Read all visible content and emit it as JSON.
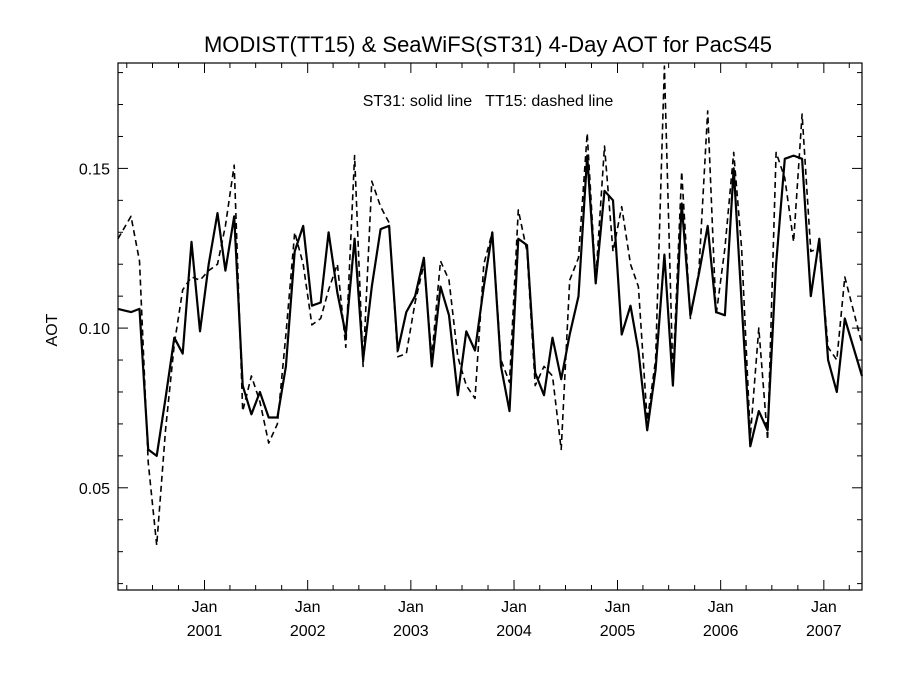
{
  "chart_data": {
    "type": "line",
    "title": "MODIST(TT15) & SeaWiFS(ST31) 4-Day AOT for PacS45",
    "annotation": "ST31: solid line   TT15: dashed line",
    "xlabel": "",
    "ylabel": "AOT",
    "xlim": [
      "2000-03-01",
      "2007-05-16"
    ],
    "ylim": [
      0.018,
      0.183
    ],
    "grid": false,
    "legend": "none",
    "yticks": [
      {
        "value": 0.05,
        "label": "0.05"
      },
      {
        "value": 0.1,
        "label": "0.10"
      },
      {
        "value": 0.15,
        "label": "0.15"
      }
    ],
    "xticks": [
      {
        "date": "2001-01-01",
        "month": "Jan",
        "year": "2001"
      },
      {
        "date": "2002-01-01",
        "month": "Jan",
        "year": "2002"
      },
      {
        "date": "2003-01-01",
        "month": "Jan",
        "year": "2003"
      },
      {
        "date": "2004-01-01",
        "month": "Jan",
        "year": "2004"
      },
      {
        "date": "2005-01-01",
        "month": "Jan",
        "year": "2005"
      },
      {
        "date": "2006-01-01",
        "month": "Jan",
        "year": "2006"
      },
      {
        "date": "2007-01-01",
        "month": "Jan",
        "year": "2007"
      }
    ],
    "series": [
      {
        "name": "ST31",
        "style": "solid",
        "color": "#000000",
        "points": [
          [
            "2000-03-01",
            0.106
          ],
          [
            "2000-04-16",
            0.105
          ],
          [
            "2000-05-16",
            0.106
          ],
          [
            "2000-06-16",
            0.062
          ],
          [
            "2000-07-16",
            0.06
          ],
          [
            "2000-08-16",
            0.078
          ],
          [
            "2000-09-16",
            0.097
          ],
          [
            "2000-10-16",
            0.092
          ],
          [
            "2000-11-16",
            0.127
          ],
          [
            "2000-12-16",
            0.099
          ],
          [
            "2001-01-16",
            0.12
          ],
          [
            "2001-02-16",
            0.136
          ],
          [
            "2001-03-16",
            0.118
          ],
          [
            "2001-04-16",
            0.135
          ],
          [
            "2001-05-16",
            0.082
          ],
          [
            "2001-06-16",
            0.073
          ],
          [
            "2001-07-16",
            0.08
          ],
          [
            "2001-08-16",
            0.072
          ],
          [
            "2001-09-16",
            0.072
          ],
          [
            "2001-10-16",
            0.088
          ],
          [
            "2001-11-16",
            0.124
          ],
          [
            "2001-12-16",
            0.132
          ],
          [
            "2002-01-16",
            0.107
          ],
          [
            "2002-02-16",
            0.108
          ],
          [
            "2002-03-16",
            0.13
          ],
          [
            "2002-04-16",
            0.111
          ],
          [
            "2002-05-16",
            0.098
          ],
          [
            "2002-06-16",
            0.128
          ],
          [
            "2002-07-16",
            0.09
          ],
          [
            "2002-08-16",
            0.113
          ],
          [
            "2002-09-16",
            0.131
          ],
          [
            "2002-10-16",
            0.132
          ],
          [
            "2002-11-16",
            0.093
          ],
          [
            "2002-12-16",
            0.105
          ],
          [
            "2003-01-16",
            0.11
          ],
          [
            "2003-02-16",
            0.122
          ],
          [
            "2003-03-16",
            0.088
          ],
          [
            "2003-04-16",
            0.113
          ],
          [
            "2003-05-16",
            0.104
          ],
          [
            "2003-06-16",
            0.079
          ],
          [
            "2003-07-16",
            0.099
          ],
          [
            "2003-08-16",
            0.093
          ],
          [
            "2003-09-16",
            0.113
          ],
          [
            "2003-10-16",
            0.13
          ],
          [
            "2003-11-16",
            0.088
          ],
          [
            "2003-12-16",
            0.074
          ],
          [
            "2004-01-16",
            0.128
          ],
          [
            "2004-02-16",
            0.126
          ],
          [
            "2004-03-16",
            0.086
          ],
          [
            "2004-04-16",
            0.079
          ],
          [
            "2004-05-16",
            0.097
          ],
          [
            "2004-06-16",
            0.084
          ],
          [
            "2004-07-16",
            0.098
          ],
          [
            "2004-08-16",
            0.11
          ],
          [
            "2004-09-16",
            0.154
          ],
          [
            "2004-10-16",
            0.114
          ],
          [
            "2004-11-16",
            0.143
          ],
          [
            "2004-12-16",
            0.14
          ],
          [
            "2005-01-16",
            0.098
          ],
          [
            "2005-02-16",
            0.107
          ],
          [
            "2005-03-16",
            0.093
          ],
          [
            "2005-04-16",
            0.068
          ],
          [
            "2005-05-16",
            0.087
          ],
          [
            "2005-06-16",
            0.123
          ],
          [
            "2005-07-16",
            0.082
          ],
          [
            "2005-08-16",
            0.139
          ],
          [
            "2005-09-16",
            0.104
          ],
          [
            "2005-10-16",
            0.117
          ],
          [
            "2005-11-16",
            0.132
          ],
          [
            "2005-12-16",
            0.105
          ],
          [
            "2006-01-16",
            0.104
          ],
          [
            "2006-02-16",
            0.15
          ],
          [
            "2006-03-16",
            0.108
          ],
          [
            "2006-04-16",
            0.063
          ],
          [
            "2006-05-16",
            0.074
          ],
          [
            "2006-06-16",
            0.068
          ],
          [
            "2006-07-16",
            0.12
          ],
          [
            "2006-08-16",
            0.153
          ],
          [
            "2006-09-16",
            0.154
          ],
          [
            "2006-10-16",
            0.153
          ],
          [
            "2006-11-16",
            0.11
          ],
          [
            "2006-12-16",
            0.128
          ],
          [
            "2007-01-16",
            0.09
          ],
          [
            "2007-02-16",
            0.08
          ],
          [
            "2007-03-16",
            0.103
          ],
          [
            "2007-05-16",
            0.085
          ]
        ]
      },
      {
        "name": "TT15",
        "style": "dashed",
        "color": "#000000",
        "points": [
          [
            "2000-03-01",
            0.128
          ],
          [
            "2000-04-16",
            0.135
          ],
          [
            "2000-05-16",
            0.121
          ],
          [
            "2000-06-16",
            0.058
          ],
          [
            "2000-07-16",
            0.032
          ],
          [
            "2000-08-16",
            0.068
          ],
          [
            "2000-09-16",
            0.095
          ],
          [
            "2000-10-16",
            0.112
          ],
          [
            "2000-11-16",
            0.116
          ],
          [
            "2000-12-16",
            0.115
          ],
          [
            "2001-01-16",
            0.118
          ],
          [
            "2001-02-16",
            0.12
          ],
          [
            "2001-03-16",
            0.132
          ],
          [
            "2001-04-16",
            0.151
          ],
          [
            "2001-05-16",
            0.074
          ],
          [
            "2001-06-16",
            0.085
          ],
          [
            "2001-07-16",
            0.077
          ],
          [
            "2001-08-16",
            0.064
          ],
          [
            "2001-09-16",
            0.07
          ],
          [
            "2001-10-16",
            0.098
          ],
          [
            "2001-11-16",
            0.13
          ],
          [
            "2001-12-16",
            0.12
          ],
          [
            "2002-01-16",
            0.101
          ],
          [
            "2002-02-16",
            0.103
          ],
          [
            "2002-03-16",
            0.112
          ],
          [
            "2002-04-16",
            0.12
          ],
          [
            "2002-05-16",
            0.094
          ],
          [
            "2002-06-16",
            0.154
          ],
          [
            "2002-07-16",
            0.088
          ],
          [
            "2002-08-16",
            0.146
          ],
          [
            "2002-09-16",
            0.138
          ],
          [
            "2002-10-16",
            0.133
          ],
          [
            "2002-11-16",
            0.091
          ],
          [
            "2002-12-16",
            0.092
          ],
          [
            "2003-01-16",
            0.108
          ],
          [
            "2003-02-16",
            0.12
          ],
          [
            "2003-03-16",
            0.091
          ],
          [
            "2003-04-16",
            0.121
          ],
          [
            "2003-05-16",
            0.115
          ],
          [
            "2003-06-16",
            0.091
          ],
          [
            "2003-07-16",
            0.082
          ],
          [
            "2003-08-16",
            0.078
          ],
          [
            "2003-09-16",
            0.12
          ],
          [
            "2003-10-16",
            0.13
          ],
          [
            "2003-11-16",
            0.09
          ],
          [
            "2003-12-16",
            0.083
          ],
          [
            "2004-01-16",
            0.137
          ],
          [
            "2004-02-16",
            0.124
          ],
          [
            "2004-03-16",
            0.082
          ],
          [
            "2004-04-16",
            0.088
          ],
          [
            "2004-05-16",
            0.085
          ],
          [
            "2004-06-16",
            0.062
          ],
          [
            "2004-07-16",
            0.115
          ],
          [
            "2004-08-16",
            0.122
          ],
          [
            "2004-09-16",
            0.161
          ],
          [
            "2004-10-16",
            0.115
          ],
          [
            "2004-11-16",
            0.157
          ],
          [
            "2004-12-16",
            0.124
          ],
          [
            "2005-01-16",
            0.138
          ],
          [
            "2005-02-16",
            0.12
          ],
          [
            "2005-03-16",
            0.113
          ],
          [
            "2005-04-16",
            0.071
          ],
          [
            "2005-05-16",
            0.09
          ],
          [
            "2005-06-16",
            0.182
          ],
          [
            "2005-07-16",
            0.085
          ],
          [
            "2005-08-16",
            0.149
          ],
          [
            "2005-09-16",
            0.103
          ],
          [
            "2005-10-16",
            0.118
          ],
          [
            "2005-11-16",
            0.168
          ],
          [
            "2005-12-16",
            0.104
          ],
          [
            "2006-01-16",
            0.125
          ],
          [
            "2006-02-16",
            0.155
          ],
          [
            "2006-03-16",
            0.125
          ],
          [
            "2006-04-16",
            0.066
          ],
          [
            "2006-05-16",
            0.1
          ],
          [
            "2006-06-16",
            0.065
          ],
          [
            "2006-07-16",
            0.155
          ],
          [
            "2006-08-16",
            0.147
          ],
          [
            "2006-09-16",
            0.127
          ],
          [
            "2006-10-16",
            0.167
          ],
          [
            "2006-11-16",
            0.124
          ],
          [
            "2006-12-16",
            0.125
          ],
          [
            "2007-01-16",
            0.094
          ],
          [
            "2007-02-16",
            0.09
          ],
          [
            "2007-03-16",
            0.116
          ],
          [
            "2007-05-16",
            0.095
          ]
        ]
      }
    ]
  }
}
